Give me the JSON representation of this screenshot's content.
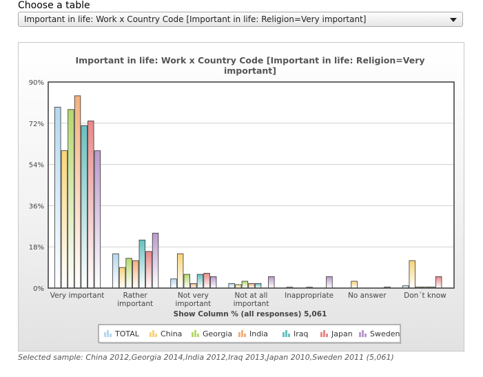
{
  "header": {
    "choose_label": "Choose a table",
    "selected_table": "Important in life: Work x Country Code [Important in life: Religion=Very important]"
  },
  "footer": {
    "sample_note": "Selected sample: China 2012,Georgia 2014,India 2012,Iraq 2013,Japan 2010,Sweden 2011 (5,061)"
  },
  "chart_data": {
    "type": "bar",
    "title_lines": [
      "Important in life: Work x Country Code [Important in life: Religion=Very",
      "important]"
    ],
    "xlabel": "Show Column % (all responses) 5,061",
    "ylabel": "",
    "ylim": [
      0,
      90
    ],
    "yticks": [
      "0%",
      "18%",
      "36%",
      "54%",
      "72%",
      "90%"
    ],
    "grid": true,
    "legend_position": "bottom",
    "categories": [
      [
        "Very important"
      ],
      [
        "Rather",
        "important"
      ],
      [
        "Not very",
        "important"
      ],
      [
        "Not at all",
        "important"
      ],
      [
        "Inappropriate"
      ],
      [
        "No answer"
      ],
      [
        "Don´t know"
      ]
    ],
    "series": [
      {
        "name": "TOTAL",
        "color": "#b4d8f0",
        "values": [
          79,
          15,
          4,
          2,
          0.4,
          0,
          1
        ]
      },
      {
        "name": "China",
        "color": "#f8d47a",
        "values": [
          60,
          9,
          15,
          1.5,
          0,
          3,
          12
        ]
      },
      {
        "name": "Georgia",
        "color": "#b5d86e",
        "values": [
          78,
          13,
          6,
          3,
          0,
          0,
          0.5
        ]
      },
      {
        "name": "India",
        "color": "#f4b07c",
        "values": [
          84,
          12,
          2,
          2,
          0.4,
          0,
          0.5
        ]
      },
      {
        "name": "Iraq",
        "color": "#68c0c0",
        "values": [
          71,
          21,
          6,
          2,
          0,
          0,
          0.5
        ]
      },
      {
        "name": "Japan",
        "color": "#e88888",
        "values": [
          73,
          16,
          6.5,
          0,
          0,
          0,
          5
        ]
      },
      {
        "name": "Sweden",
        "color": "#b99acc",
        "values": [
          60,
          24,
          5,
          5,
          5,
          0.5,
          0
        ]
      }
    ]
  }
}
